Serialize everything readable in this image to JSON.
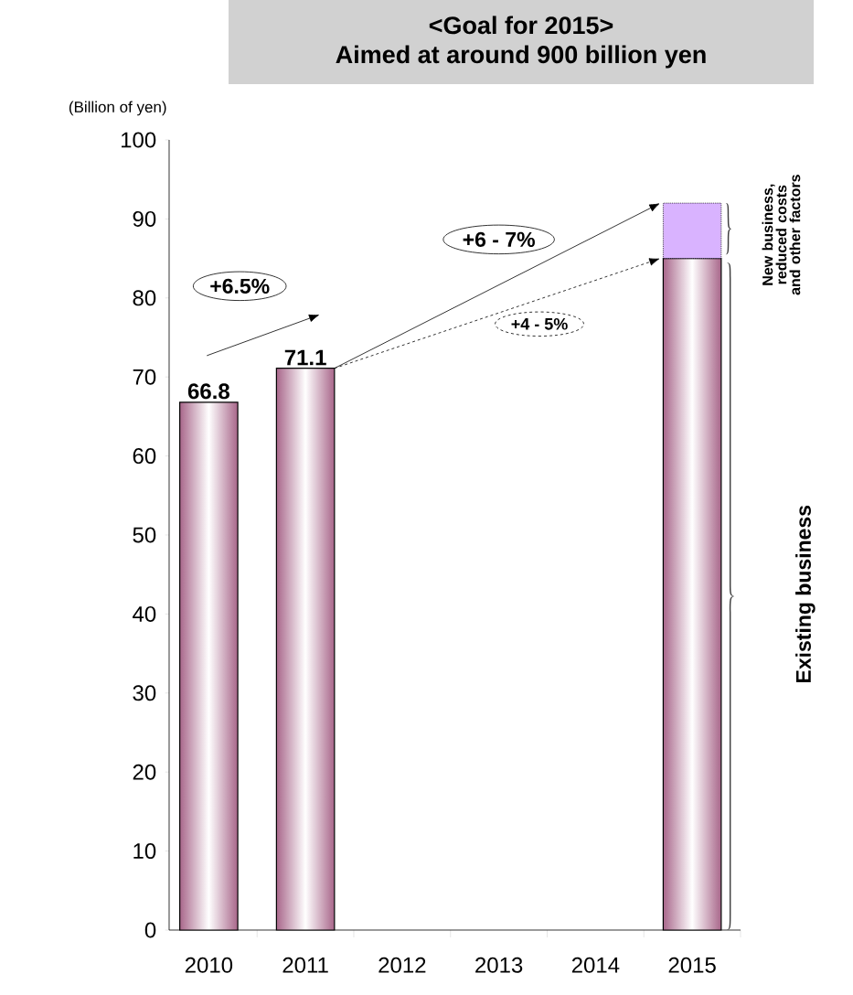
{
  "chart_data": {
    "type": "bar",
    "title": "<Goal for 2015>",
    "subtitle": "Aimed at around 900 billion yen",
    "ylabel": "(Billion of yen)",
    "categories": [
      "2010",
      "2011",
      "2012",
      "2013",
      "2014",
      "2015"
    ],
    "stacked": true,
    "series": [
      {
        "name": "Existing business",
        "color": "#a8668a",
        "values": [
          66.8,
          71.1,
          null,
          null,
          null,
          85
        ],
        "value_labels": [
          "66.8",
          "71.1",
          null,
          null,
          null,
          null
        ]
      },
      {
        "name": "New business, reduced costs and other factors",
        "color": "#d9b3ff",
        "values": [
          null,
          null,
          null,
          null,
          null,
          7
        ]
      }
    ],
    "annotations": [
      "+6.5%",
      "+6 - 7%",
      "+4 - 5%"
    ],
    "ylim": [
      0,
      100
    ],
    "yticks": [
      0,
      10,
      20,
      30,
      40,
      50,
      60,
      70,
      80,
      90,
      100
    ]
  }
}
